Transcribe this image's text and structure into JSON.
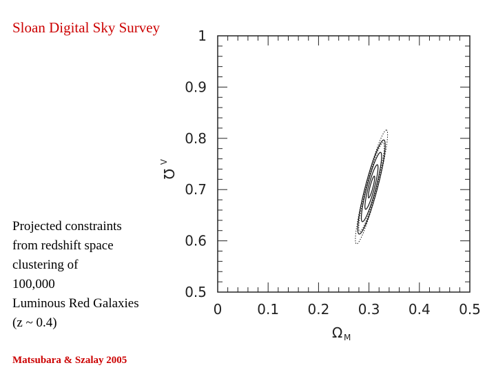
{
  "slide": {
    "title": "Sloan Digital Sky Survey",
    "caption_lines": [
      "Projected constraints",
      "from redshift space",
      "clustering of",
      "100,000",
      "Luminous Red Galaxies",
      "(z ~ 0.4)"
    ],
    "credit": "Matsubara & Szalay 2005"
  },
  "colors": {
    "title": "#cc0000",
    "credit": "#cc0000",
    "axes": "#222222"
  },
  "chart_data": {
    "type": "contour",
    "xlabel": {
      "symbol": "Ω",
      "subscript": "M"
    },
    "ylabel": {
      "symbol": "Ω",
      "subscript": "Λ"
    },
    "xlim": [
      0,
      0.5
    ],
    "ylim": [
      0.5,
      1.0
    ],
    "xticks": [
      "0",
      "0.1",
      "0.2",
      "0.3",
      "0.4",
      "0.5"
    ],
    "yticks": [
      "0.5",
      "0.6",
      "0.7",
      "0.8",
      "0.9",
      "1"
    ],
    "grid": false,
    "center": [
      0.305,
      0.705
    ],
    "orientation_deg": 75,
    "contours": [
      {
        "style": "solid",
        "semi_major": 0.095,
        "semi_minor": 0.012
      },
      {
        "style": "solid",
        "semi_major": 0.07,
        "semi_minor": 0.009
      },
      {
        "style": "solid",
        "semi_major": 0.045,
        "semi_minor": 0.006
      },
      {
        "style": "solid",
        "semi_major": 0.022,
        "semi_minor": 0.003
      },
      {
        "style": "dotted",
        "semi_major": 0.115,
        "semi_minor": 0.012
      },
      {
        "style": "dotted",
        "semi_major": 0.09,
        "semi_minor": 0.01
      }
    ]
  }
}
